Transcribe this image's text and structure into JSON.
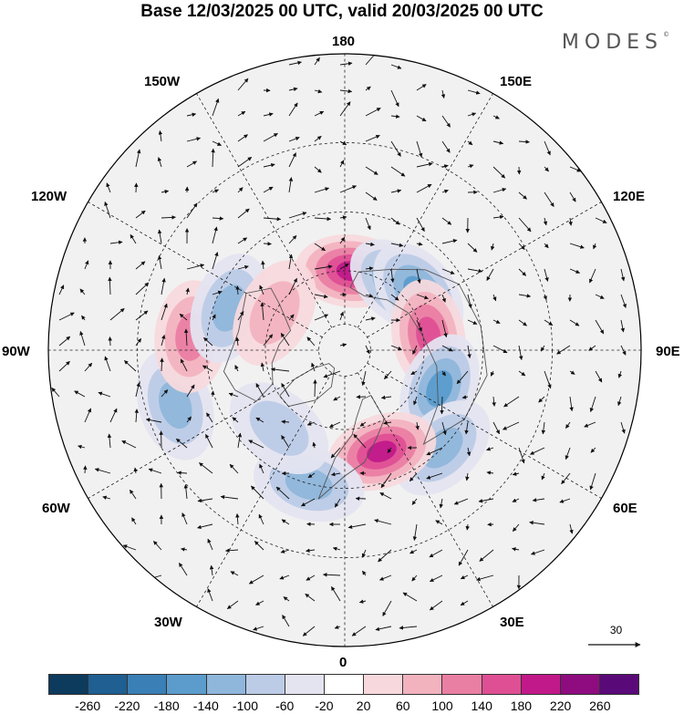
{
  "title": "Base 12/03/2025 00 UTC, valid 20/03/2025 00 UTC",
  "logo": "MODES",
  "logo_mark": "©",
  "longitude_labels": {
    "top": "180",
    "bottom": "0",
    "left": "90W",
    "right": "90E",
    "upper_left_150": "150W",
    "upper_left_120": "120W",
    "upper_right_150": "150E",
    "upper_right_120": "120E",
    "lower_left_60": "60W",
    "lower_left_30": "30W",
    "lower_right_60": "60E",
    "lower_right_30": "30E"
  },
  "reference_vector": "30",
  "colorbar": {
    "colors": [
      "#0d3b5e",
      "#1f5f91",
      "#3a7fb5",
      "#5b9ccc",
      "#8fb6db",
      "#bccbe6",
      "#e4e4f0",
      "#ffffff",
      "#f7d9dd",
      "#f2b3bf",
      "#ea7fa4",
      "#df4f93",
      "#c1198a",
      "#8e0c80",
      "#5a0a78"
    ],
    "tick_labels": [
      "-260",
      "-220",
      "-180",
      "-140",
      "-100",
      "-60",
      "-20",
      "20",
      "60",
      "100",
      "140",
      "180",
      "220",
      "260"
    ]
  },
  "anomaly_centers": [
    {
      "sign": "positive",
      "lon": 175,
      "lat": 60,
      "value": 200
    },
    {
      "sign": "negative",
      "lon": 140,
      "lat": 58,
      "value": -180
    },
    {
      "sign": "negative",
      "lon": 128,
      "lat": 55,
      "value": -170
    },
    {
      "sign": "positive",
      "lon": 100,
      "lat": 58,
      "value": 160
    },
    {
      "sign": "negative",
      "lon": 68,
      "lat": 52,
      "value": -170
    },
    {
      "sign": "negative",
      "lon": 45,
      "lat": 40,
      "value": -120
    },
    {
      "sign": "positive",
      "lon": 20,
      "lat": 50,
      "value": 230
    },
    {
      "sign": "negative",
      "lon": -15,
      "lat": 40,
      "value": -150
    },
    {
      "sign": "negative",
      "lon": -40,
      "lat": 52,
      "value": -110
    },
    {
      "sign": "negative",
      "lon": -72,
      "lat": 28,
      "value": -120
    },
    {
      "sign": "positive",
      "lon": -95,
      "lat": 35,
      "value": 120
    },
    {
      "sign": "negative",
      "lon": -110,
      "lat": 45,
      "value": -130
    },
    {
      "sign": "positive",
      "lon": -118,
      "lat": 60,
      "value": 80
    }
  ]
}
